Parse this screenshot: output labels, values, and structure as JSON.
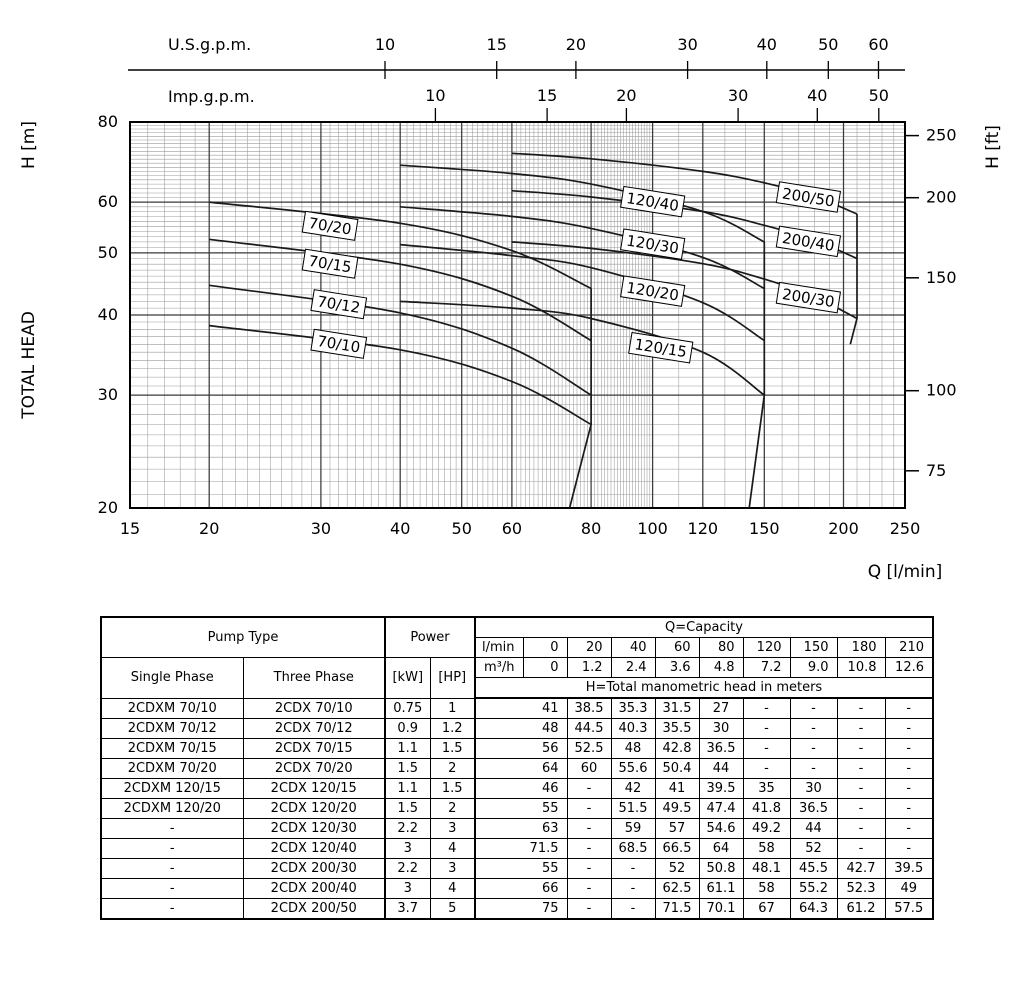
{
  "chart_data": {
    "type": "line",
    "x_scale": "log",
    "y_scale": "log",
    "xlabel": "Q [l/min]",
    "ylabel_left": "H [m]",
    "ylabel_right": "H [ft]",
    "left_axis_title": "TOTAL HEAD",
    "xlim": [
      15,
      250
    ],
    "ylim": [
      20,
      80
    ],
    "x_ticks": [
      15,
      20,
      30,
      40,
      50,
      60,
      80,
      100,
      120,
      150,
      200,
      250
    ],
    "y_ticks": [
      20,
      30,
      40,
      50,
      60,
      80
    ],
    "right_ticks_ft": [
      75,
      100,
      150,
      200,
      250
    ],
    "ft_to_m": 0.3048,
    "top_scales": [
      {
        "label": "U.S.g.p.m.",
        "lmin_per_unit": 3.785,
        "ticks": [
          10,
          15,
          20,
          30,
          40,
          50,
          60
        ]
      },
      {
        "label": "Imp.g.p.m.",
        "lmin_per_unit": 4.546,
        "ticks": [
          10,
          15,
          20,
          30,
          40,
          50
        ]
      }
    ],
    "series": [
      {
        "name": "70/10",
        "x": [
          20,
          40,
          60,
          80
        ],
        "y": [
          38.5,
          35.3,
          31.5,
          27
        ],
        "label_at": [
          32,
          36
        ]
      },
      {
        "name": "70/12",
        "x": [
          20,
          40,
          60,
          80
        ],
        "y": [
          44.5,
          40.3,
          35.5,
          30
        ],
        "label_at": [
          32,
          41.5
        ]
      },
      {
        "name": "70/15",
        "x": [
          20,
          40,
          60,
          80
        ],
        "y": [
          52.5,
          48,
          42.8,
          36.5
        ],
        "label_at": [
          31,
          48
        ]
      },
      {
        "name": "70/20",
        "x": [
          20,
          40,
          60,
          80
        ],
        "y": [
          60,
          55.6,
          50.4,
          44
        ],
        "label_at": [
          31,
          55
        ]
      },
      {
        "name": "120/15",
        "x": [
          40,
          60,
          80,
          120,
          150
        ],
        "y": [
          42,
          41,
          39.5,
          35,
          30
        ],
        "label_at": [
          103,
          35.5
        ]
      },
      {
        "name": "120/20",
        "x": [
          40,
          60,
          80,
          120,
          150
        ],
        "y": [
          51.5,
          49.5,
          47.4,
          41.8,
          36.5
        ],
        "label_at": [
          100,
          43.5
        ]
      },
      {
        "name": "120/30",
        "x": [
          40,
          60,
          80,
          120,
          150
        ],
        "y": [
          59,
          57,
          54.6,
          49.2,
          44
        ],
        "label_at": [
          100,
          51.5
        ]
      },
      {
        "name": "120/40",
        "x": [
          40,
          60,
          80,
          120,
          150
        ],
        "y": [
          68.5,
          66.5,
          64,
          58,
          52
        ],
        "label_at": [
          100,
          60
        ]
      },
      {
        "name": "200/30",
        "x": [
          60,
          80,
          120,
          150,
          180,
          210
        ],
        "y": [
          52,
          50.8,
          48.1,
          45.5,
          42.7,
          39.5
        ],
        "label_at": [
          176,
          42.5
        ]
      },
      {
        "name": "200/40",
        "x": [
          60,
          80,
          120,
          150,
          180,
          210
        ],
        "y": [
          62.5,
          61.1,
          58,
          55.2,
          52.3,
          49
        ],
        "label_at": [
          176,
          52
        ]
      },
      {
        "name": "200/50",
        "x": [
          60,
          80,
          120,
          150,
          180,
          210
        ],
        "y": [
          71.5,
          70.1,
          67,
          64.3,
          61.2,
          57.5
        ],
        "label_at": [
          176,
          61
        ]
      }
    ],
    "end_of_curve_lines": [
      [
        [
          80,
          44
        ],
        [
          80,
          27
        ],
        [
          74,
          20
        ]
      ],
      [
        [
          150,
          52
        ],
        [
          150,
          30
        ],
        [
          142,
          20
        ]
      ],
      [
        [
          210,
          57.5
        ],
        [
          210,
          39.5
        ],
        [
          205,
          36
        ]
      ]
    ]
  },
  "table": {
    "header": {
      "pump_type": "Pump Type",
      "single_phase": "Single Phase",
      "three_phase": "Three Phase",
      "power": "Power",
      "kw": "[kW]",
      "hp": "[HP]",
      "capacity": "Q=Capacity",
      "lmin_label": "l/min",
      "m3h_label": "m³/h",
      "lmin": [
        "0",
        "20",
        "40",
        "60",
        "80",
        "120",
        "150",
        "180",
        "210"
      ],
      "m3h": [
        "0",
        "1.2",
        "2.4",
        "3.6",
        "4.8",
        "7.2",
        "9.0",
        "10.8",
        "12.6"
      ],
      "head_note": "H=Total manometric head in meters"
    },
    "rows": [
      {
        "sp": "2CDXM 70/10",
        "tp": "2CDX 70/10",
        "kw": "0.75",
        "hp": "1",
        "h": [
          "41",
          "38.5",
          "35.3",
          "31.5",
          "27",
          "-",
          "-",
          "-",
          "-"
        ]
      },
      {
        "sp": "2CDXM 70/12",
        "tp": "2CDX 70/12",
        "kw": "0.9",
        "hp": "1.2",
        "h": [
          "48",
          "44.5",
          "40.3",
          "35.5",
          "30",
          "-",
          "-",
          "-",
          "-"
        ]
      },
      {
        "sp": "2CDXM 70/15",
        "tp": "2CDX 70/15",
        "kw": "1.1",
        "hp": "1.5",
        "h": [
          "56",
          "52.5",
          "48",
          "42.8",
          "36.5",
          "-",
          "-",
          "-",
          "-"
        ]
      },
      {
        "sp": "2CDXM 70/20",
        "tp": "2CDX 70/20",
        "kw": "1.5",
        "hp": "2",
        "h": [
          "64",
          "60",
          "55.6",
          "50.4",
          "44",
          "-",
          "-",
          "-",
          "-"
        ]
      },
      {
        "sp": "2CDXM 120/15",
        "tp": "2CDX 120/15",
        "kw": "1.1",
        "hp": "1.5",
        "h": [
          "46",
          "-",
          "42",
          "41",
          "39.5",
          "35",
          "30",
          "-",
          "-"
        ]
      },
      {
        "sp": "2CDXM 120/20",
        "tp": "2CDX 120/20",
        "kw": "1.5",
        "hp": "2",
        "h": [
          "55",
          "-",
          "51.5",
          "49.5",
          "47.4",
          "41.8",
          "36.5",
          "-",
          "-"
        ]
      },
      {
        "sp": "-",
        "tp": "2CDX 120/30",
        "kw": "2.2",
        "hp": "3",
        "h": [
          "63",
          "-",
          "59",
          "57",
          "54.6",
          "49.2",
          "44",
          "-",
          "-"
        ]
      },
      {
        "sp": "-",
        "tp": "2CDX 120/40",
        "kw": "3",
        "hp": "4",
        "h": [
          "71.5",
          "-",
          "68.5",
          "66.5",
          "64",
          "58",
          "52",
          "-",
          "-"
        ]
      },
      {
        "sp": "-",
        "tp": "2CDX 200/30",
        "kw": "2.2",
        "hp": "3",
        "h": [
          "55",
          "-",
          "-",
          "52",
          "50.8",
          "48.1",
          "45.5",
          "42.7",
          "39.5"
        ]
      },
      {
        "sp": "-",
        "tp": "2CDX 200/40",
        "kw": "3",
        "hp": "4",
        "h": [
          "66",
          "-",
          "-",
          "62.5",
          "61.1",
          "58",
          "55.2",
          "52.3",
          "49"
        ]
      },
      {
        "sp": "-",
        "tp": "2CDX 200/50",
        "kw": "3.7",
        "hp": "5",
        "h": [
          "75",
          "-",
          "-",
          "71.5",
          "70.1",
          "67",
          "64.3",
          "61.2",
          "57.5"
        ]
      }
    ]
  }
}
